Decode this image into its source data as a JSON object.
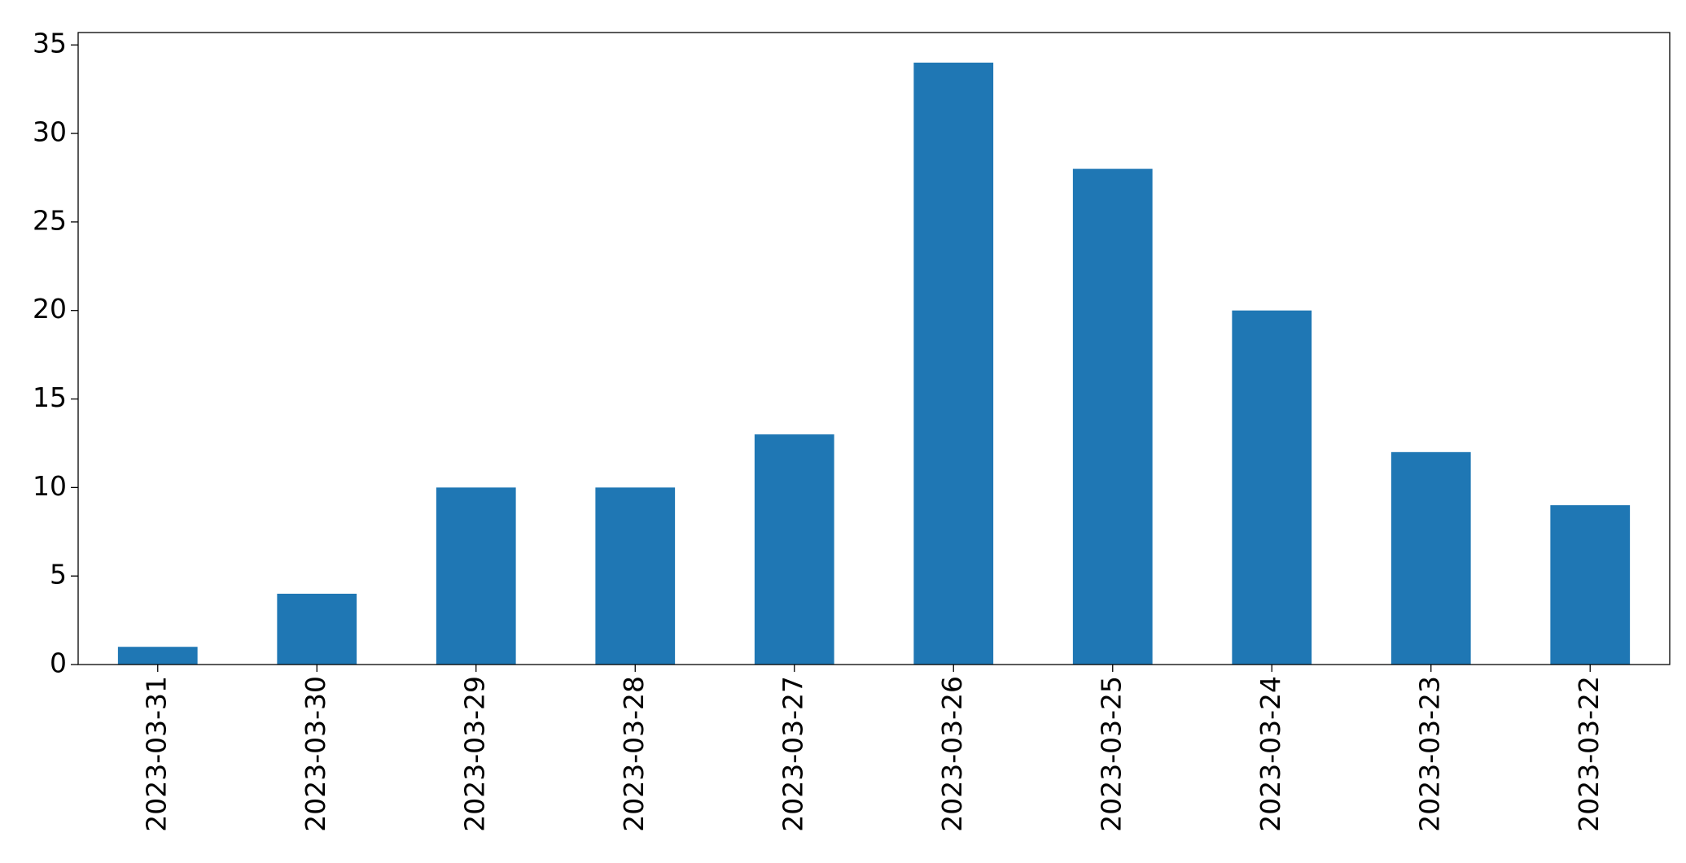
{
  "chart_data": {
    "type": "bar",
    "categories": [
      "2023-03-31",
      "2023-03-30",
      "2023-03-29",
      "2023-03-28",
      "2023-03-27",
      "2023-03-26",
      "2023-03-25",
      "2023-03-24",
      "2023-03-23",
      "2023-03-22"
    ],
    "values": [
      1,
      4,
      10,
      10,
      13,
      34,
      28,
      20,
      12,
      9
    ],
    "color": "#1f77b4",
    "ylim": [
      0,
      35.7
    ],
    "yticks": [
      0,
      5,
      10,
      15,
      20,
      25,
      30,
      35
    ],
    "grid": false
  }
}
